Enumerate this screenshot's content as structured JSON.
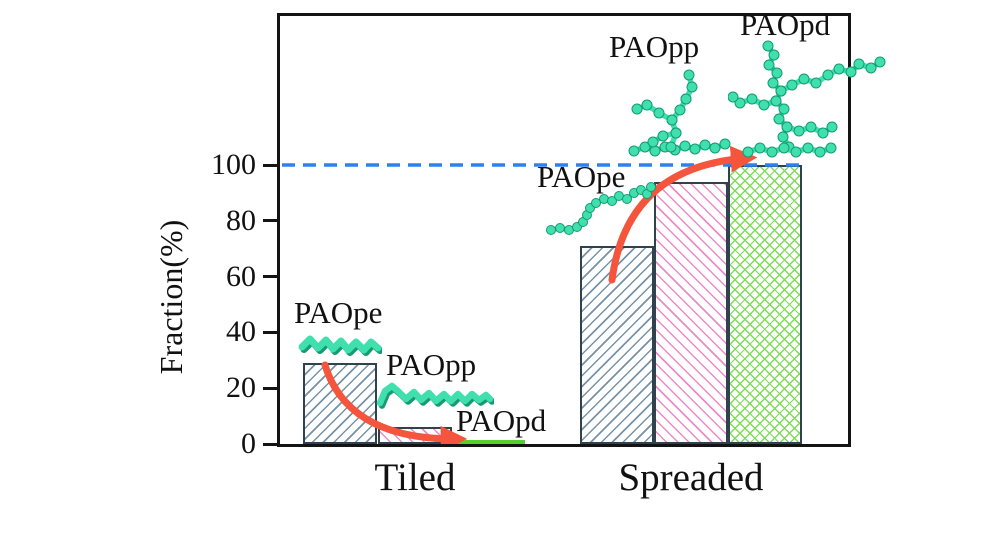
{
  "chart_data": {
    "type": "bar",
    "title": "",
    "xlabel": "",
    "ylabel": "Fraction(%)",
    "categories": [
      "Tiled",
      "Spreaded"
    ],
    "series": [
      {
        "name": "PAOpe",
        "values": [
          29,
          71
        ],
        "hatch": "/"
      },
      {
        "name": "PAOpp",
        "values": [
          6,
          94
        ],
        "hatch": "\\"
      },
      {
        "name": "PAOpd",
        "values": [
          0.5,
          100
        ],
        "hatch": "x"
      }
    ],
    "yticks": [
      0,
      20,
      40,
      60,
      80,
      100
    ],
    "ylim": [
      0,
      153
    ],
    "grid": false,
    "legend": "none",
    "reference_line": {
      "value": 100,
      "style": "dashed"
    },
    "annotations": {
      "tiled": {
        "pe": "PAOpe",
        "pp": "PAOpp",
        "pd": "PAOpd"
      },
      "spreaded": {
        "pe": "PAOpe",
        "pp": "PAOpp",
        "pd": "PAOpd"
      }
    },
    "colors": {
      "pe_hatch": "#7593a9",
      "pp_hatch": "#ee8ac8",
      "pd_hatch": "#7edd58",
      "flat_green": "#55cf2e",
      "bar_edge": "#31424f",
      "reference": "#2f80ec",
      "arrow": "#f4553c",
      "molecule": "#3fe0ad",
      "molecule_dark": "#159a72",
      "text": "#111111"
    }
  }
}
